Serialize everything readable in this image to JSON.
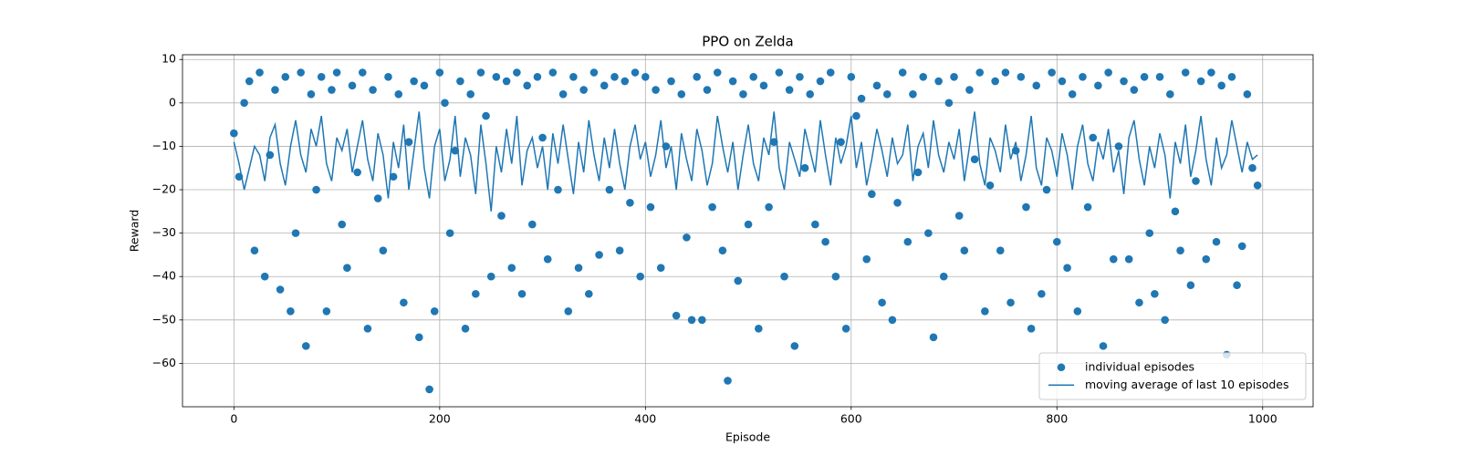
{
  "chart_data": {
    "type": "scatter",
    "title": "PPO on Zelda",
    "xlabel": "Episode",
    "ylabel": "Reward",
    "xlim": [
      -50,
      1049
    ],
    "ylim": [
      -70,
      11.1
    ],
    "xticks": [
      0,
      200,
      400,
      600,
      800,
      1000
    ],
    "yticks": [
      {
        "value": -60,
        "label": "−60"
      },
      {
        "value": -50,
        "label": "−50"
      },
      {
        "value": -40,
        "label": "−40"
      },
      {
        "value": -30,
        "label": "−30"
      },
      {
        "value": -20,
        "label": "−20"
      },
      {
        "value": -10,
        "label": "−10"
      },
      0,
      10
    ],
    "grid": true,
    "legend": "lower right",
    "x": [
      0,
      5,
      10,
      15,
      20,
      25,
      30,
      35,
      40,
      45,
      50,
      55,
      60,
      65,
      70,
      75,
      80,
      85,
      90,
      95,
      100,
      105,
      110,
      115,
      120,
      125,
      130,
      135,
      140,
      145,
      150,
      155,
      160,
      165,
      170,
      175,
      180,
      185,
      190,
      195,
      200,
      205,
      210,
      215,
      220,
      225,
      230,
      235,
      240,
      245,
      250,
      255,
      260,
      265,
      270,
      275,
      280,
      285,
      290,
      295,
      300,
      305,
      310,
      315,
      320,
      325,
      330,
      335,
      340,
      345,
      350,
      355,
      360,
      365,
      370,
      375,
      380,
      385,
      390,
      395,
      400,
      405,
      410,
      415,
      420,
      425,
      430,
      435,
      440,
      445,
      450,
      455,
      460,
      465,
      470,
      475,
      480,
      485,
      490,
      495,
      500,
      505,
      510,
      515,
      520,
      525,
      530,
      535,
      540,
      545,
      550,
      555,
      560,
      565,
      570,
      575,
      580,
      585,
      590,
      595,
      600,
      605,
      610,
      615,
      620,
      625,
      630,
      635,
      640,
      645,
      650,
      655,
      660,
      665,
      670,
      675,
      680,
      685,
      690,
      695,
      700,
      705,
      710,
      715,
      720,
      725,
      730,
      735,
      740,
      745,
      750,
      755,
      760,
      765,
      770,
      775,
      780,
      785,
      790,
      795,
      800,
      805,
      810,
      815,
      820,
      825,
      830,
      835,
      840,
      845,
      850,
      855,
      860,
      865,
      870,
      875,
      880,
      885,
      890,
      895,
      900,
      905,
      910,
      915,
      920,
      925,
      930,
      935,
      940,
      945,
      950,
      955,
      960,
      965,
      970,
      975,
      980,
      985,
      990,
      995
    ],
    "series": [
      {
        "name": "individual episodes",
        "type": "scatter",
        "color": "#1f77b4",
        "values": [
          -7,
          -17,
          0,
          5,
          -34,
          7,
          -40,
          -12,
          3,
          -43,
          6,
          -48,
          -30,
          7,
          -56,
          2,
          -20,
          6,
          -48,
          3,
          7,
          -28,
          -38,
          4,
          -16,
          7,
          -52,
          3,
          -22,
          -34,
          6,
          -17,
          2,
          -46,
          -9,
          5,
          -54,
          4,
          -66,
          -48,
          7,
          0,
          -30,
          -11,
          5,
          -52,
          2,
          -44,
          7,
          -3,
          -40,
          6,
          -26,
          5,
          -38,
          7,
          -44,
          4,
          -28,
          6,
          -8,
          -36,
          7,
          -20,
          2,
          -48,
          6,
          -38,
          3,
          -44,
          7,
          -35,
          4,
          -20,
          6,
          -34,
          5,
          -23,
          7,
          -40,
          6,
          -24,
          3,
          -38,
          -10,
          5,
          -49,
          2,
          -31,
          -50,
          6,
          -50,
          3,
          -24,
          7,
          -34,
          -64,
          5,
          -41,
          2,
          -28,
          6,
          -52,
          4,
          -24,
          -9,
          7,
          -40,
          3,
          -56,
          6,
          -15,
          2,
          -28,
          5,
          -32,
          7,
          -40,
          -9,
          -52,
          6,
          -3,
          1,
          -36,
          -21,
          4,
          -46,
          2,
          -50,
          -23,
          7,
          -32,
          2,
          -16,
          6,
          -30,
          -54,
          5,
          -40,
          0,
          6,
          -26,
          -34,
          3,
          -13,
          7,
          -48,
          -19,
          5,
          -34,
          7,
          -46,
          -11,
          6,
          -24,
          -52,
          4,
          -44,
          -20,
          7,
          -32,
          5,
          -38,
          2,
          -48,
          6,
          -24,
          -8,
          4,
          -56,
          7,
          -36,
          -10,
          5,
          -36,
          3,
          -46,
          6,
          -30,
          -44,
          6,
          -50,
          2,
          -25,
          -34,
          7,
          -42,
          -18,
          5,
          -36,
          7,
          -32,
          4,
          -58,
          6,
          -42,
          -33,
          2,
          -15,
          -19
        ]
      },
      {
        "name": "moving average of last 10 episodes",
        "type": "line",
        "color": "#1f77b4",
        "values": [
          -9,
          -14,
          -20,
          -15,
          -10,
          -12,
          -18,
          -8,
          -5,
          -14,
          -19,
          -10,
          -4,
          -12,
          -16,
          -6,
          -10,
          -3,
          -14,
          -18,
          -8,
          -11,
          -6,
          -16,
          -10,
          -4,
          -13,
          -18,
          -7,
          -12,
          -22,
          -9,
          -15,
          -5,
          -20,
          -11,
          -2,
          -15,
          -22,
          -10,
          -6,
          -18,
          -13,
          -3,
          -17,
          -8,
          -12,
          -21,
          -5,
          -14,
          -25,
          -10,
          -16,
          -6,
          -14,
          -3,
          -19,
          -11,
          -8,
          -15,
          -10,
          -20,
          -7,
          -14,
          -5,
          -13,
          -21,
          -9,
          -16,
          -4,
          -12,
          -18,
          -8,
          -15,
          -6,
          -14,
          -20,
          -10,
          -5,
          -13,
          -9,
          -17,
          -12,
          -4,
          -15,
          -10,
          -20,
          -7,
          -13,
          -18,
          -6,
          -11,
          -19,
          -14,
          -3,
          -10,
          -16,
          -9,
          -20,
          -12,
          -5,
          -14,
          -18,
          -8,
          -12,
          -2,
          -15,
          -20,
          -9,
          -13,
          -17,
          -6,
          -11,
          -16,
          -4,
          -12,
          -19,
          -8,
          -14,
          -10,
          -3,
          -15,
          -9,
          -19,
          -13,
          -6,
          -11,
          -17,
          -8,
          -14,
          -12,
          -5,
          -18,
          -10,
          -7,
          -15,
          -4,
          -12,
          -16,
          -9,
          -13,
          -6,
          -18,
          -10,
          -2,
          -14,
          -19,
          -8,
          -11,
          -16,
          -5,
          -13,
          -9,
          -18,
          -12,
          -3,
          -15,
          -19,
          -8,
          -11,
          -17,
          -7,
          -12,
          -20,
          -10,
          -5,
          -14,
          -18,
          -9,
          -13,
          -6,
          -16,
          -11,
          -21,
          -8,
          -4,
          -13,
          -19,
          -10,
          -15,
          -7,
          -12,
          -22,
          -9,
          -14,
          -5,
          -17,
          -11,
          -3,
          -13,
          -19,
          -8,
          -15,
          -12,
          -4,
          -10,
          -16,
          -9,
          -13,
          -12
        ]
      }
    ]
  }
}
